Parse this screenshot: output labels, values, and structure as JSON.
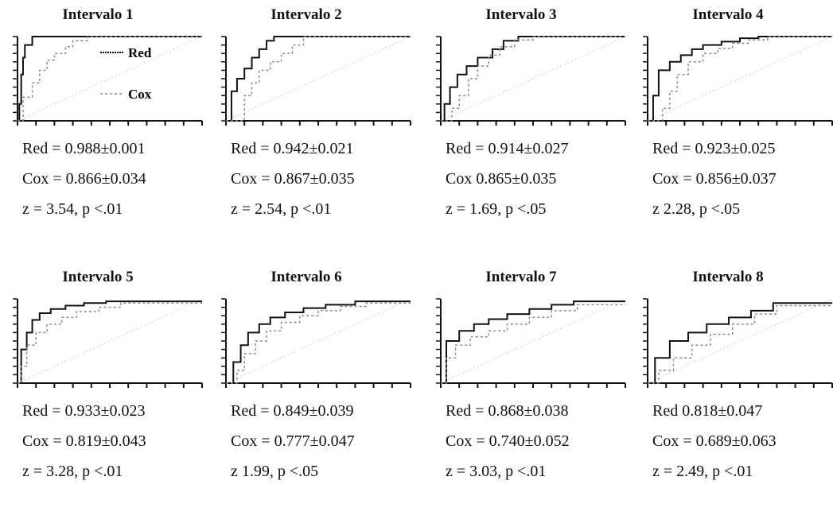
{
  "colors": {
    "red_series": "#111111",
    "cox_series": "#8a8a8a"
  },
  "legend": {
    "red_label": "Red",
    "cox_label": "Cox"
  },
  "chart_data": [
    {
      "type": "line",
      "title": "Intervalo 1",
      "xlim": [
        0,
        1
      ],
      "ylim": [
        0,
        1
      ],
      "series": [
        {
          "name": "Red",
          "x": [
            0,
            0.01,
            0.01,
            0.02,
            0.02,
            0.03,
            0.03,
            0.04,
            0.04,
            0.08,
            0.08,
            1
          ],
          "y": [
            0,
            0,
            0.2,
            0.2,
            0.55,
            0.55,
            0.75,
            0.75,
            0.9,
            0.9,
            1,
            1
          ]
        },
        {
          "name": "Cox",
          "x": [
            0,
            0.03,
            0.03,
            0.08,
            0.08,
            0.12,
            0.12,
            0.16,
            0.16,
            0.2,
            0.2,
            0.26,
            0.26,
            0.3,
            0.3,
            0.38,
            0.38,
            1
          ],
          "y": [
            0,
            0,
            0.28,
            0.28,
            0.45,
            0.45,
            0.6,
            0.6,
            0.72,
            0.72,
            0.8,
            0.8,
            0.88,
            0.88,
            0.95,
            0.95,
            1,
            1
          ]
        }
      ],
      "stats": {
        "red": "Red = 0.988±0.001",
        "cox": "Cox = 0.866±0.034",
        "z": "z = 3.54, p <.01"
      }
    },
    {
      "type": "line",
      "title": "Intervalo 2",
      "xlim": [
        0,
        1
      ],
      "ylim": [
        0,
        1
      ],
      "series": [
        {
          "name": "Red",
          "x": [
            0,
            0.03,
            0.03,
            0.06,
            0.06,
            0.1,
            0.1,
            0.14,
            0.14,
            0.18,
            0.18,
            0.22,
            0.22,
            0.26,
            0.26,
            1
          ],
          "y": [
            0,
            0,
            0.35,
            0.35,
            0.5,
            0.5,
            0.62,
            0.62,
            0.75,
            0.75,
            0.85,
            0.85,
            0.95,
            0.95,
            1,
            1
          ]
        },
        {
          "name": "Cox",
          "x": [
            0,
            0.1,
            0.1,
            0.14,
            0.14,
            0.18,
            0.18,
            0.24,
            0.24,
            0.3,
            0.3,
            0.36,
            0.36,
            0.42,
            0.42,
            1
          ],
          "y": [
            0,
            0,
            0.3,
            0.3,
            0.45,
            0.45,
            0.6,
            0.6,
            0.7,
            0.7,
            0.8,
            0.8,
            0.9,
            0.9,
            1,
            1
          ]
        }
      ],
      "stats": {
        "red": "Red = 0.942±0.021",
        "cox": "Cox = 0.867±0.035",
        "z": "z = 2.54, p <.01"
      }
    },
    {
      "type": "line",
      "title": "Intervalo 3",
      "xlim": [
        0,
        1
      ],
      "ylim": [
        0,
        1
      ],
      "series": [
        {
          "name": "Red",
          "x": [
            0,
            0.02,
            0.02,
            0.05,
            0.05,
            0.09,
            0.09,
            0.14,
            0.14,
            0.2,
            0.2,
            0.28,
            0.28,
            0.34,
            0.34,
            0.42,
            0.42,
            1
          ],
          "y": [
            0,
            0,
            0.2,
            0.2,
            0.4,
            0.4,
            0.55,
            0.55,
            0.65,
            0.65,
            0.75,
            0.75,
            0.85,
            0.85,
            0.95,
            0.95,
            1,
            1
          ]
        },
        {
          "name": "Cox",
          "x": [
            0,
            0.06,
            0.06,
            0.1,
            0.1,
            0.15,
            0.15,
            0.2,
            0.2,
            0.26,
            0.26,
            0.32,
            0.32,
            0.4,
            0.4,
            0.5,
            0.5,
            1
          ],
          "y": [
            0,
            0,
            0.15,
            0.15,
            0.3,
            0.3,
            0.5,
            0.5,
            0.65,
            0.65,
            0.78,
            0.78,
            0.88,
            0.88,
            0.96,
            0.96,
            1,
            1
          ]
        }
      ],
      "stats": {
        "red": "Red = 0.914±0.027",
        "cox": "Cox  0.865±0.035",
        "z": "z = 1.69, p <.05"
      }
    },
    {
      "type": "line",
      "title": "Intervalo 4",
      "xlim": [
        0,
        1
      ],
      "ylim": [
        0,
        1
      ],
      "series": [
        {
          "name": "Red",
          "x": [
            0,
            0.03,
            0.03,
            0.06,
            0.06,
            0.12,
            0.12,
            0.18,
            0.18,
            0.24,
            0.24,
            0.3,
            0.3,
            0.4,
            0.4,
            0.5,
            0.5,
            0.6,
            0.6,
            1
          ],
          "y": [
            0,
            0,
            0.3,
            0.3,
            0.6,
            0.6,
            0.7,
            0.7,
            0.78,
            0.78,
            0.85,
            0.85,
            0.9,
            0.9,
            0.94,
            0.94,
            0.98,
            0.98,
            1,
            1
          ]
        },
        {
          "name": "Cox",
          "x": [
            0,
            0.08,
            0.08,
            0.12,
            0.12,
            0.16,
            0.16,
            0.22,
            0.22,
            0.3,
            0.3,
            0.38,
            0.38,
            0.46,
            0.46,
            0.55,
            0.55,
            0.65,
            0.65,
            1
          ],
          "y": [
            0,
            0,
            0.15,
            0.15,
            0.35,
            0.35,
            0.55,
            0.55,
            0.7,
            0.7,
            0.8,
            0.8,
            0.86,
            0.86,
            0.92,
            0.92,
            0.96,
            0.96,
            1,
            1
          ]
        }
      ],
      "stats": {
        "red": "Red = 0.923±0.025",
        "cox": "Cox = 0.856±0.037",
        "z": "z  2.28, p <.05"
      }
    },
    {
      "type": "line",
      "title": "Intervalo 5",
      "xlim": [
        0,
        1
      ],
      "ylim": [
        0,
        1
      ],
      "series": [
        {
          "name": "Red",
          "x": [
            0,
            0.02,
            0.02,
            0.05,
            0.05,
            0.08,
            0.08,
            0.12,
            0.12,
            0.18,
            0.18,
            0.26,
            0.26,
            0.36,
            0.36,
            0.48,
            0.48,
            1
          ],
          "y": [
            0,
            0,
            0.4,
            0.4,
            0.6,
            0.6,
            0.75,
            0.75,
            0.83,
            0.83,
            0.88,
            0.88,
            0.92,
            0.92,
            0.95,
            0.95,
            0.97,
            0.97
          ]
        },
        {
          "name": "Cox",
          "x": [
            0,
            0.02,
            0.02,
            0.05,
            0.05,
            0.1,
            0.1,
            0.16,
            0.16,
            0.24,
            0.24,
            0.32,
            0.32,
            0.44,
            0.44,
            0.56,
            0.56,
            1
          ],
          "y": [
            0,
            0,
            0.2,
            0.2,
            0.45,
            0.45,
            0.6,
            0.6,
            0.7,
            0.7,
            0.78,
            0.78,
            0.85,
            0.85,
            0.9,
            0.9,
            0.95,
            0.95
          ]
        }
      ],
      "stats": {
        "red": "Red = 0.933±0.023",
        "cox": "Cox = 0.819±0.043",
        "z": "z = 3.28, p <.01"
      }
    },
    {
      "type": "line",
      "title": "Intervalo 6",
      "xlim": [
        0,
        1
      ],
      "ylim": [
        0,
        1
      ],
      "series": [
        {
          "name": "Red",
          "x": [
            0,
            0.04,
            0.04,
            0.08,
            0.08,
            0.12,
            0.12,
            0.18,
            0.18,
            0.24,
            0.24,
            0.32,
            0.32,
            0.42,
            0.42,
            0.54,
            0.54,
            0.7,
            0.7,
            1
          ],
          "y": [
            0,
            0,
            0.25,
            0.25,
            0.45,
            0.45,
            0.6,
            0.6,
            0.7,
            0.7,
            0.78,
            0.78,
            0.84,
            0.84,
            0.89,
            0.89,
            0.93,
            0.93,
            0.97,
            0.97
          ]
        },
        {
          "name": "Cox",
          "x": [
            0,
            0.06,
            0.06,
            0.1,
            0.1,
            0.16,
            0.16,
            0.22,
            0.22,
            0.3,
            0.3,
            0.4,
            0.4,
            0.5,
            0.5,
            0.62,
            0.62,
            0.76,
            0.76,
            1
          ],
          "y": [
            0,
            0,
            0.15,
            0.15,
            0.35,
            0.35,
            0.5,
            0.5,
            0.62,
            0.62,
            0.72,
            0.72,
            0.8,
            0.8,
            0.86,
            0.86,
            0.91,
            0.91,
            0.95,
            0.95
          ]
        }
      ],
      "stats": {
        "red": "Red = 0.849±0.039",
        "cox": "Cox = 0.777±0.047",
        "z": "z  1.99, p <.05"
      }
    },
    {
      "type": "line",
      "title": "Intervalo 7",
      "xlim": [
        0,
        1
      ],
      "ylim": [
        0,
        1
      ],
      "series": [
        {
          "name": "Red",
          "x": [
            0,
            0.03,
            0.03,
            0.1,
            0.1,
            0.18,
            0.18,
            0.26,
            0.26,
            0.36,
            0.36,
            0.48,
            0.48,
            0.6,
            0.6,
            0.72,
            0.72,
            1
          ],
          "y": [
            0,
            0,
            0.5,
            0.5,
            0.62,
            0.62,
            0.7,
            0.7,
            0.76,
            0.76,
            0.82,
            0.82,
            0.88,
            0.88,
            0.93,
            0.93,
            0.97,
            0.97
          ]
        },
        {
          "name": "Cox",
          "x": [
            0,
            0.03,
            0.03,
            0.08,
            0.08,
            0.16,
            0.16,
            0.26,
            0.26,
            0.36,
            0.36,
            0.48,
            0.48,
            0.6,
            0.6,
            0.74,
            0.74,
            1
          ],
          "y": [
            0,
            0,
            0.3,
            0.3,
            0.45,
            0.45,
            0.55,
            0.55,
            0.62,
            0.62,
            0.7,
            0.7,
            0.78,
            0.78,
            0.86,
            0.86,
            0.93,
            0.93
          ]
        }
      ],
      "stats": {
        "red": "Red = 0.868±0.038",
        "cox": "Cox = 0.740±0.052",
        "z": "z = 3.03, p <.01"
      }
    },
    {
      "type": "line",
      "title": "Intervalo 8",
      "xlim": [
        0,
        1
      ],
      "ylim": [
        0,
        1
      ],
      "series": [
        {
          "name": "Red",
          "x": [
            0,
            0.04,
            0.04,
            0.12,
            0.12,
            0.22,
            0.22,
            0.32,
            0.32,
            0.44,
            0.44,
            0.56,
            0.56,
            0.68,
            0.68,
            1
          ],
          "y": [
            0,
            0,
            0.3,
            0.3,
            0.5,
            0.5,
            0.6,
            0.6,
            0.7,
            0.7,
            0.78,
            0.78,
            0.86,
            0.86,
            0.95,
            0.95
          ]
        },
        {
          "name": "Cox",
          "x": [
            0,
            0.06,
            0.06,
            0.14,
            0.14,
            0.24,
            0.24,
            0.34,
            0.34,
            0.46,
            0.46,
            0.58,
            0.58,
            0.7,
            0.7,
            1
          ],
          "y": [
            0,
            0,
            0.15,
            0.15,
            0.3,
            0.3,
            0.45,
            0.45,
            0.58,
            0.58,
            0.7,
            0.7,
            0.82,
            0.82,
            0.92,
            0.92
          ]
        }
      ],
      "stats": {
        "red": "Red  0.818±0.047",
        "cox": "Cox = 0.689±0.063",
        "z": "z = 2.49, p <.01"
      }
    }
  ]
}
